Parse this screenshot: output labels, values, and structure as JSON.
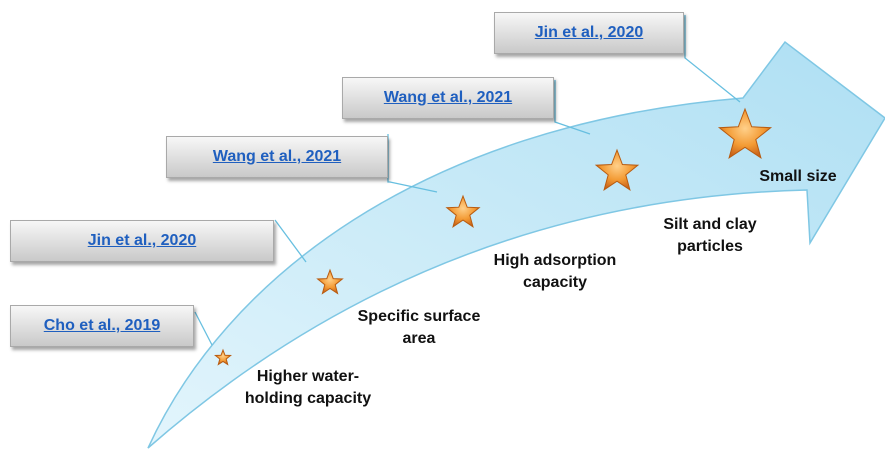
{
  "colors": {
    "arrow_fill": "#bfe7f8",
    "arrow_stroke": "#7fc7e4",
    "connector": "#67bfe0",
    "link": "#1f5fbf",
    "star_fill": "#f0922a",
    "star_stroke": "#b85b10"
  },
  "references": [
    {
      "text": "Cho et al., 2019"
    },
    {
      "text": "Jin et al., 2020"
    },
    {
      "text": "Wang et al., 2021"
    },
    {
      "text": "Wang et al., 2021"
    },
    {
      "text": "Jin et al., 2020"
    }
  ],
  "properties": [
    {
      "line1": "Higher water-",
      "line2": "holding capacity",
      "icon": "star-icon"
    },
    {
      "line1": "Specific surface",
      "line2": "area",
      "icon": "star-icon"
    },
    {
      "line1": "High adsorption",
      "line2": "capacity",
      "icon": "star-icon"
    },
    {
      "line1": "Silt and clay",
      "line2": "particles",
      "icon": "star-icon"
    },
    {
      "line1": "Small size",
      "line2": "",
      "icon": "star-icon"
    }
  ]
}
